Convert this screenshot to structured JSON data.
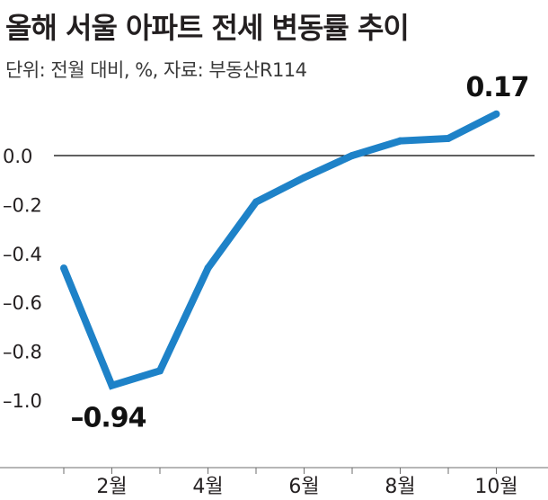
{
  "title": "올해 서울 아파트 전세 변동률 추이",
  "subtitle": "단위: 전월 대비, %, 자료: 부동산R114",
  "colors": {
    "line": "#1e82c8",
    "text": "#231f20",
    "axis": "#6e6e6e"
  },
  "chart_data": {
    "type": "line",
    "x": [
      1,
      2,
      3,
      4,
      5,
      6,
      7,
      8,
      9,
      10
    ],
    "y": [
      -0.46,
      -0.94,
      -0.88,
      -0.46,
      -0.19,
      -0.09,
      0.0,
      0.06,
      0.07,
      0.17
    ],
    "x_ticks": [
      2,
      4,
      6,
      8,
      10
    ],
    "x_tick_labels": [
      "2월",
      "4월",
      "6월",
      "8월",
      "10월"
    ],
    "y_ticks": [
      0.0,
      -0.2,
      -0.4,
      -0.6,
      -0.8,
      -1.0
    ],
    "y_tick_labels": [
      "0.0",
      "–0.2",
      "–0.4",
      "–0.6",
      "–0.8",
      "–1.0"
    ],
    "ylim": [
      -1.2,
      0.2
    ],
    "xlim": [
      0.5,
      10.5
    ],
    "annotations": [
      {
        "x": 2,
        "y": -0.94,
        "text": "–0.94"
      },
      {
        "x": 10,
        "y": 0.17,
        "text": "0.17"
      }
    ],
    "grid": false,
    "reference_line_y": 0.0
  }
}
